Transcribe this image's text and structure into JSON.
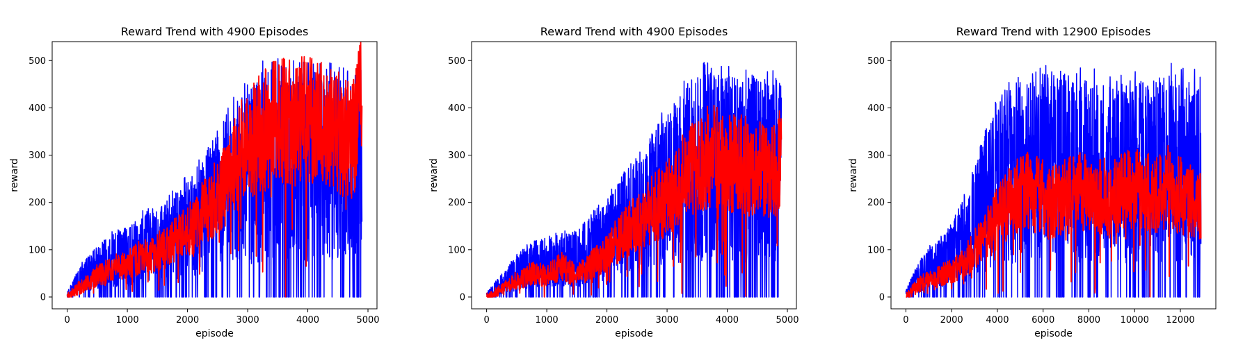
{
  "chart_data": [
    {
      "type": "line",
      "title": "Reward Trend with 4900 Episodes",
      "xlabel": "episode",
      "ylabel": "reward",
      "xlim": [
        -250,
        5150
      ],
      "ylim": [
        -25,
        540
      ],
      "xticks": [
        "0",
        "1000",
        "2000",
        "3000",
        "4000",
        "5000"
      ],
      "yticks": [
        "0",
        "100",
        "200",
        "300",
        "400",
        "500"
      ],
      "grid": false,
      "legend": "none",
      "series": [
        {
          "color": "#0000ff",
          "style": "raw",
          "x": [
            0,
            250,
            500,
            750,
            1000,
            1250,
            1500,
            1750,
            2000,
            2250,
            2500,
            2750,
            3000,
            3250,
            3500,
            3750,
            4000,
            4250,
            4500,
            4750,
            4900
          ],
          "upper": [
            10,
            75,
            110,
            140,
            150,
            185,
            205,
            225,
            260,
            300,
            355,
            420,
            460,
            500,
            505,
            500,
            500,
            500,
            505,
            505,
            510
          ],
          "lower": [
            0,
            0,
            0,
            0,
            0,
            0,
            0,
            0,
            0,
            0,
            0,
            0,
            0,
            0,
            0,
            0,
            0,
            0,
            0,
            0,
            0
          ]
        },
        {
          "color": "#ff0000",
          "style": "smoothed",
          "x": [
            0,
            250,
            500,
            750,
            1000,
            1250,
            1500,
            1750,
            2000,
            2250,
            2500,
            2750,
            3000,
            3250,
            3500,
            3750,
            4000,
            4250,
            4500,
            4750,
            4900
          ],
          "values": [
            0,
            25,
            45,
            60,
            70,
            85,
            95,
            115,
            140,
            175,
            215,
            270,
            330,
            350,
            380,
            370,
            375,
            365,
            350,
            330,
            420
          ]
        }
      ]
    },
    {
      "type": "line",
      "title": "Reward Trend with 4900 Episodes",
      "xlabel": "episode",
      "ylabel": "reward",
      "xlim": [
        -250,
        5150
      ],
      "ylim": [
        -25,
        540
      ],
      "xticks": [
        "0",
        "1000",
        "2000",
        "3000",
        "4000",
        "5000"
      ],
      "yticks": [
        "0",
        "100",
        "200",
        "300",
        "400",
        "500"
      ],
      "grid": false,
      "legend": "none",
      "series": [
        {
          "color": "#0000ff",
          "style": "raw",
          "x": [
            0,
            250,
            500,
            750,
            1000,
            1250,
            1500,
            1750,
            2000,
            2250,
            2500,
            2750,
            3000,
            3250,
            3500,
            3750,
            4000,
            4250,
            4500,
            4750,
            4900
          ],
          "upper": [
            10,
            50,
            90,
            120,
            130,
            140,
            140,
            180,
            220,
            270,
            300,
            350,
            420,
            450,
            500,
            500,
            495,
            480,
            505,
            480,
            485
          ],
          "lower": [
            0,
            0,
            0,
            0,
            0,
            0,
            0,
            0,
            0,
            0,
            0,
            0,
            0,
            0,
            0,
            0,
            0,
            0,
            0,
            0,
            0
          ]
        },
        {
          "color": "#ff0000",
          "style": "smoothed",
          "x": [
            0,
            250,
            500,
            750,
            1000,
            1250,
            1500,
            1750,
            2000,
            2250,
            2500,
            2750,
            3000,
            3250,
            3500,
            3750,
            4000,
            4250,
            4500,
            4750,
            4900
          ],
          "values": [
            0,
            15,
            35,
            50,
            45,
            65,
            45,
            70,
            95,
            130,
            160,
            185,
            210,
            250,
            280,
            300,
            280,
            280,
            270,
            260,
            300
          ]
        }
      ]
    },
    {
      "type": "line",
      "title": "Reward Trend with 12900 Episodes",
      "xlabel": "episode",
      "ylabel": "reward",
      "xlim": [
        -650,
        13550
      ],
      "ylim": [
        -25,
        540
      ],
      "xticks": [
        "0",
        "2000",
        "4000",
        "6000",
        "8000",
        "10000",
        "12000"
      ],
      "yticks": [
        "0",
        "100",
        "200",
        "300",
        "400",
        "500"
      ],
      "grid": false,
      "legend": "none",
      "series": [
        {
          "color": "#0000ff",
          "style": "raw",
          "x": [
            0,
            500,
            1000,
            1500,
            2000,
            2500,
            3000,
            3500,
            4000,
            4500,
            5000,
            5500,
            6000,
            6500,
            7000,
            7500,
            8000,
            8500,
            9000,
            9500,
            10000,
            10500,
            11000,
            11500,
            12000,
            12500,
            12900
          ],
          "upper": [
            15,
            70,
            110,
            130,
            160,
            210,
            280,
            360,
            430,
            460,
            470,
            480,
            500,
            495,
            480,
            485,
            485,
            480,
            470,
            475,
            480,
            475,
            480,
            500,
            490,
            480,
            500
          ],
          "lower": [
            0,
            0,
            0,
            0,
            0,
            0,
            0,
            0,
            0,
            0,
            0,
            0,
            0,
            0,
            0,
            0,
            0,
            0,
            0,
            0,
            0,
            0,
            0,
            0,
            0,
            0,
            0
          ]
        },
        {
          "color": "#ff0000",
          "style": "smoothed",
          "x": [
            0,
            500,
            1000,
            1500,
            2000,
            2500,
            3000,
            3500,
            4000,
            4500,
            5000,
            5500,
            6000,
            6500,
            7000,
            7500,
            8000,
            8500,
            9000,
            9500,
            10000,
            10500,
            11000,
            11500,
            12000,
            12500,
            12900
          ],
          "values": [
            0,
            25,
            35,
            45,
            55,
            70,
            100,
            130,
            170,
            200,
            215,
            225,
            210,
            200,
            215,
            220,
            225,
            215,
            210,
            220,
            230,
            220,
            215,
            235,
            215,
            200,
            200
          ]
        }
      ]
    }
  ]
}
